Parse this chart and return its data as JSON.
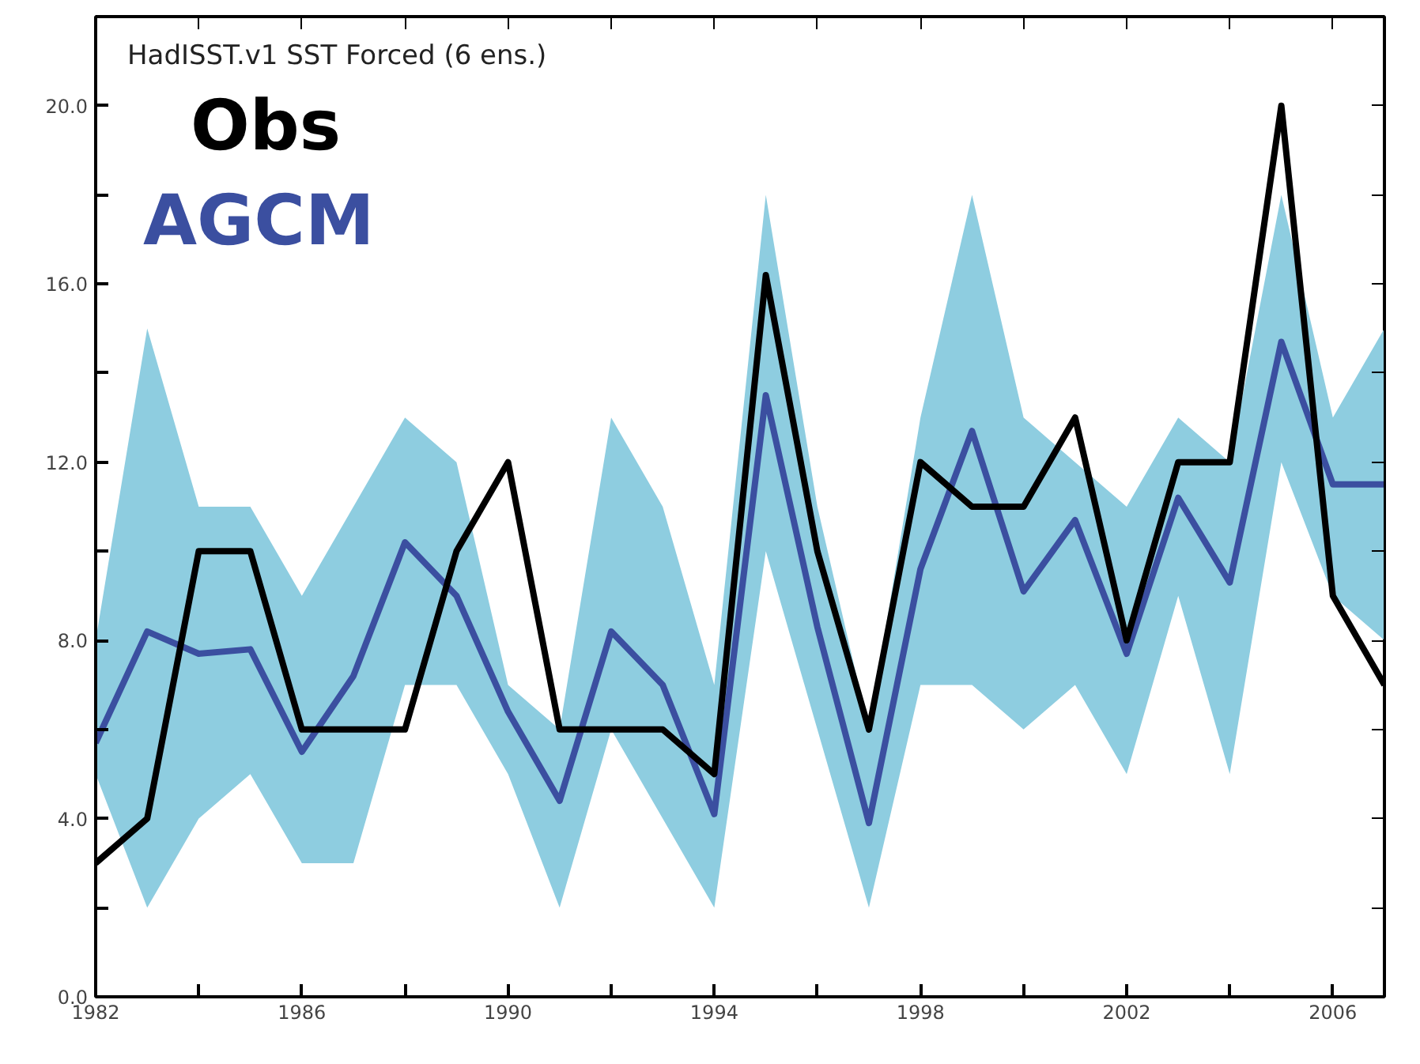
{
  "chart_data": {
    "type": "line",
    "title": "HadISST.v1 SST Forced (6 ens.)",
    "x": [
      1982,
      1983,
      1984,
      1985,
      1986,
      1987,
      1988,
      1989,
      1990,
      1991,
      1992,
      1993,
      1994,
      1995,
      1996,
      1997,
      1998,
      1999,
      2000,
      2001,
      2002,
      2003,
      2004,
      2005,
      2006,
      2007
    ],
    "series": [
      {
        "name": "AGCM",
        "color": "#3b4fa0",
        "values": [
          5.7,
          8.2,
          7.7,
          7.8,
          5.5,
          7.2,
          10.2,
          9.0,
          6.4,
          4.4,
          8.2,
          7.0,
          4.1,
          13.5,
          8.3,
          3.9,
          9.6,
          12.7,
          9.1,
          10.7,
          7.7,
          11.2,
          9.3,
          14.7,
          11.5,
          11.5
        ],
        "lower": [
          5,
          2,
          4,
          5,
          3,
          3,
          7,
          7,
          5,
          2,
          6,
          4,
          2,
          10,
          6,
          2,
          7,
          7,
          6,
          7,
          5,
          9,
          5,
          12,
          9,
          8
        ],
        "upper": [
          8,
          15,
          11,
          11,
          9,
          11,
          13,
          12,
          7,
          6,
          13,
          11,
          7,
          18,
          11,
          6,
          13,
          18,
          13,
          12,
          11,
          13,
          12,
          18,
          13,
          15
        ]
      },
      {
        "name": "Obs",
        "color": "#000000",
        "values": [
          3,
          4,
          10,
          10,
          6,
          6,
          6,
          10,
          12,
          6,
          6,
          6,
          5,
          16.2,
          10,
          6,
          12,
          11,
          11,
          13,
          8,
          12,
          12,
          20,
          9,
          7
        ]
      }
    ],
    "xlim": [
      1982,
      2007
    ],
    "ylim": [
      0,
      22
    ],
    "xticks": [
      1982,
      {
        "value": 1984,
        "label": null
      },
      1986,
      {
        "value": 1988,
        "label": null
      },
      1990,
      {
        "value": 1992,
        "label": null
      },
      1994,
      {
        "value": 1996,
        "label": null
      },
      1998,
      {
        "value": 2000,
        "label": null
      },
      2002,
      {
        "value": 2004,
        "label": null
      },
      2006
    ],
    "yticks": [
      {
        "value": 0,
        "label": "0.0"
      },
      {
        "value": 2,
        "label": null
      },
      {
        "value": 4,
        "label": "4.0"
      },
      {
        "value": 6,
        "label": null
      },
      {
        "value": 8,
        "label": "8.0"
      },
      {
        "value": 10,
        "label": null
      },
      {
        "value": 12,
        "label": "12.0"
      },
      {
        "value": 14,
        "label": null
      },
      {
        "value": 16,
        "label": "16.0"
      },
      {
        "value": 18,
        "label": null
      },
      {
        "value": 20,
        "label": "20.0"
      }
    ],
    "legend": "top left",
    "grid": false,
    "line_style": "solid",
    "marker": "none"
  }
}
